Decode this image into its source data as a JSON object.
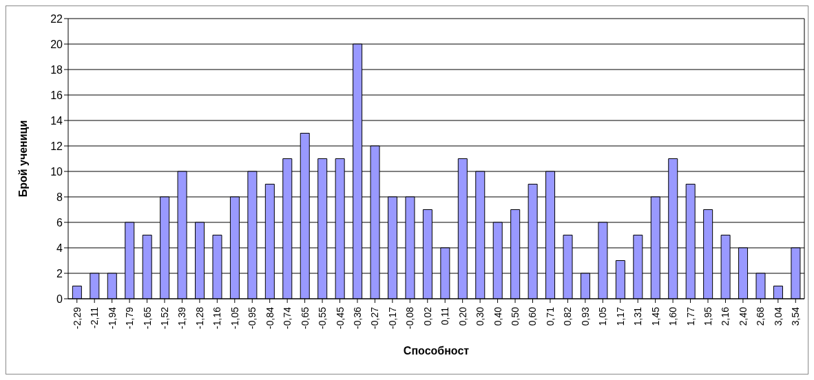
{
  "chart_data": {
    "type": "bar",
    "xlabel": "Способност",
    "ylabel": "Брой ученици",
    "categories": [
      "-2,29",
      "-2,11",
      "-1,94",
      "-1,79",
      "-1,65",
      "-1,52",
      "-1,39",
      "-1,28",
      "-1,16",
      "-1,05",
      "-0,95",
      "-0,84",
      "-0,74",
      "-0,65",
      "-0,55",
      "-0,45",
      "-0,36",
      "-0,27",
      "-0,17",
      "-0,08",
      "0,02",
      "0,11",
      "0,20",
      "0,30",
      "0,40",
      "0,50",
      "0,60",
      "0,71",
      "0,82",
      "0,93",
      "1,05",
      "1,17",
      "1,31",
      "1,45",
      "1,60",
      "1,77",
      "1,95",
      "2,16",
      "2,40",
      "2,68",
      "3,04",
      "3,54"
    ],
    "values": [
      1,
      2,
      2,
      6,
      5,
      8,
      10,
      6,
      5,
      8,
      10,
      9,
      11,
      13,
      11,
      11,
      20,
      12,
      8,
      8,
      7,
      4,
      11,
      10,
      6,
      7,
      9,
      10,
      5,
      2,
      6,
      3,
      5,
      8,
      11,
      9,
      7,
      5,
      4,
      2,
      1,
      4
    ],
    "color": "#9999ff",
    "ylim": [
      0,
      22
    ],
    "yticks": [
      0,
      2,
      4,
      6,
      8,
      10,
      12,
      14,
      16,
      18,
      20,
      22
    ],
    "grid": "y"
  }
}
